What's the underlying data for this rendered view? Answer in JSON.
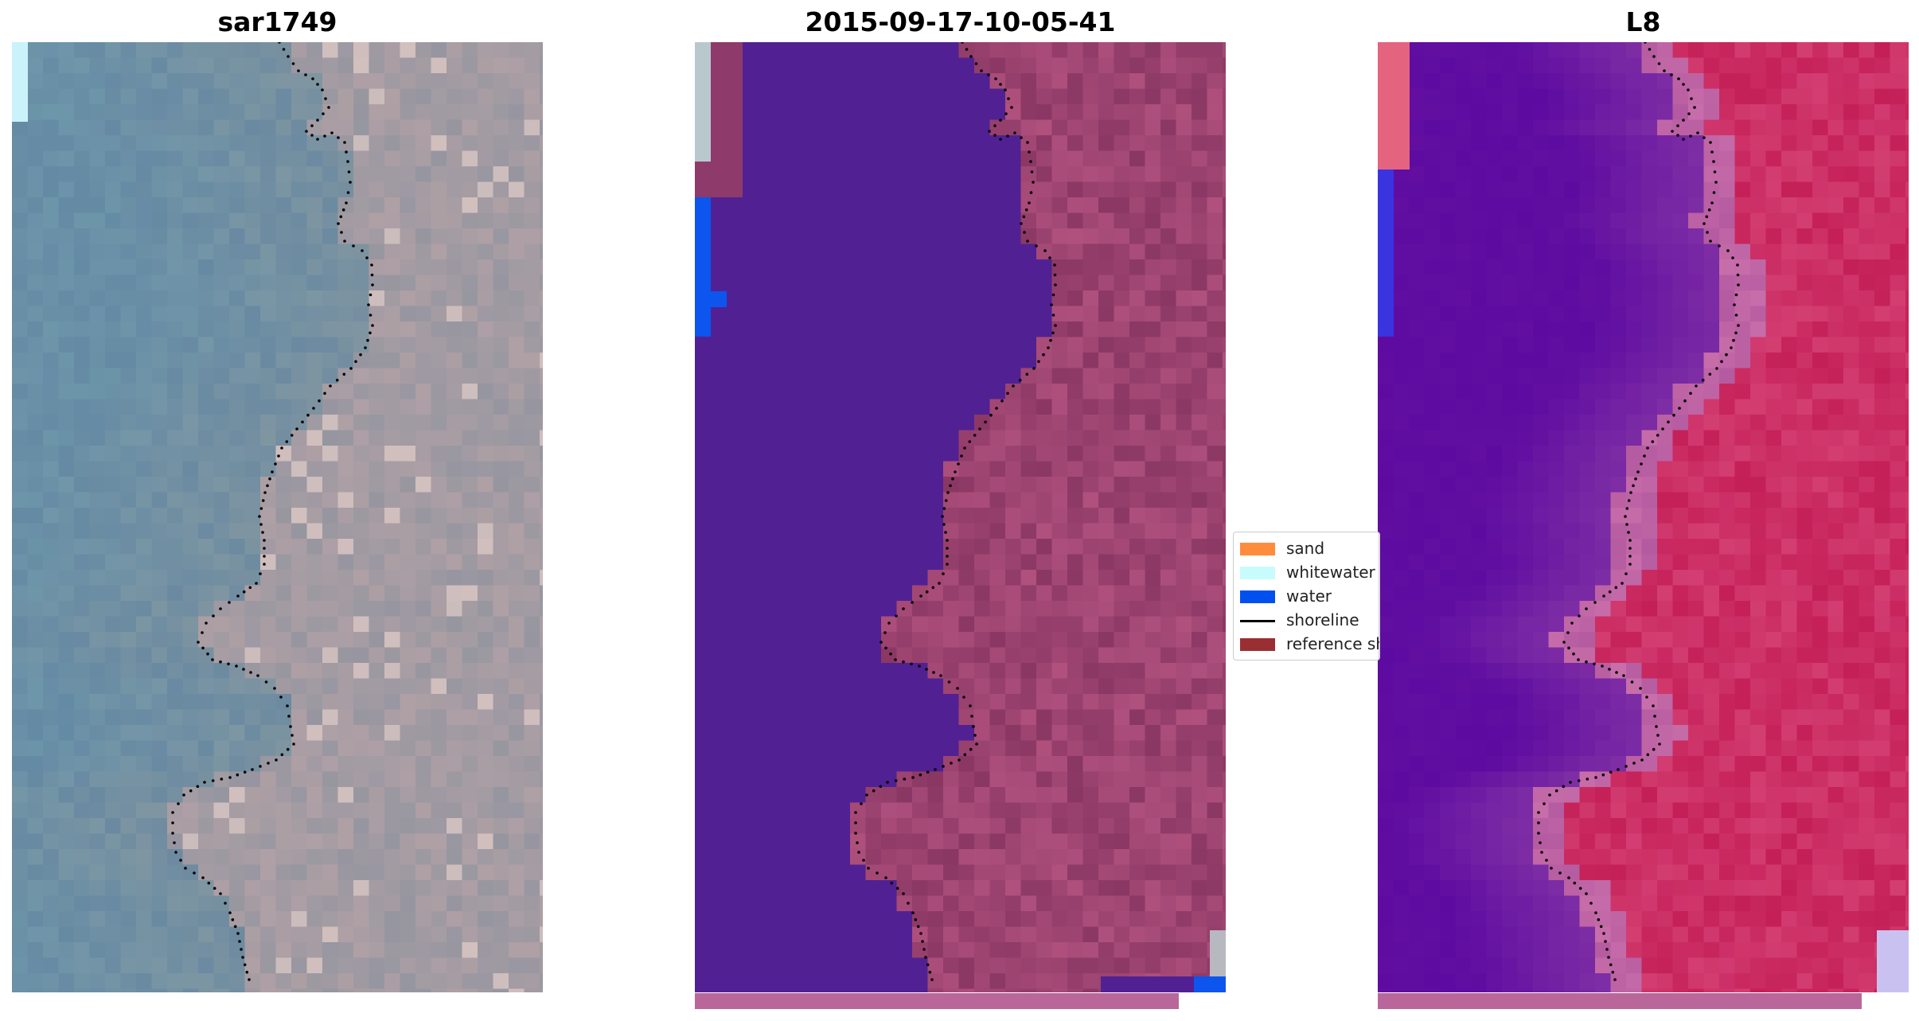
{
  "panels": [
    {
      "id": "rgb",
      "title": "sar1749"
    },
    {
      "id": "classified",
      "title": "2015-09-17-10-05-41"
    },
    {
      "id": "l8",
      "title": "L8"
    }
  ],
  "legend": {
    "items": [
      {
        "label": "sand",
        "color": "#ff8c3c",
        "kind": "patch"
      },
      {
        "label": "whitewater",
        "color": "#c8fcfc",
        "kind": "patch"
      },
      {
        "label": "water",
        "color": "#0050f0",
        "kind": "patch"
      },
      {
        "label": "shoreline",
        "color": "#000000",
        "kind": "line"
      },
      {
        "label": "reference shoreline buffer",
        "color": "#9a2f33",
        "kind": "patch"
      }
    ]
  },
  "colors": {
    "water_class": "#512193",
    "land_overlay": "#8e3a6a",
    "rgb_base": "#8f9aa4",
    "l8_water": "#5d0aa1",
    "l8_land": "#c41f57"
  }
}
